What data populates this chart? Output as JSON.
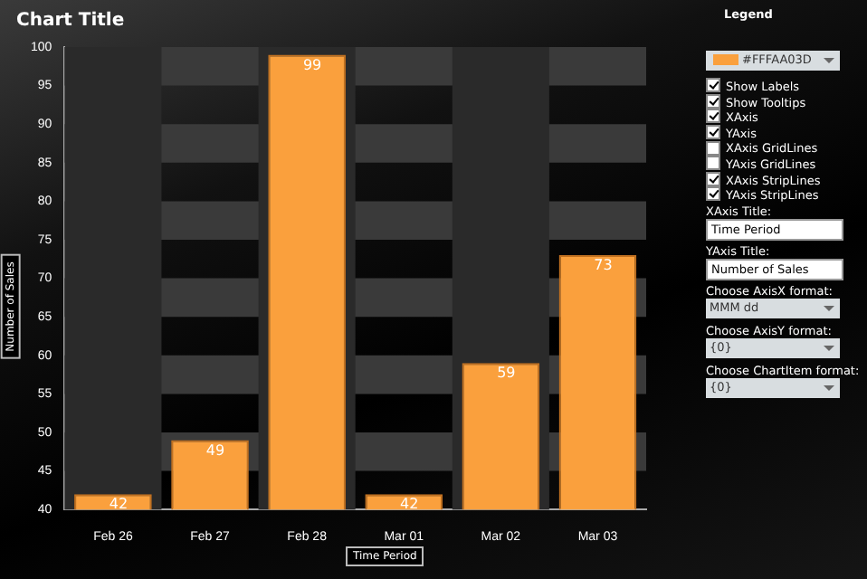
{
  "chart_data": {
    "type": "bar",
    "title": "Chart Title",
    "xlabel": "Time Period",
    "ylabel": "Number of Sales",
    "categories": [
      "Feb 26",
      "Feb 27",
      "Feb 28",
      "Mar 01",
      "Mar 02",
      "Mar 03"
    ],
    "values": [
      42,
      49,
      99,
      42,
      59,
      73
    ],
    "color": "#faa03d",
    "data_labels": true,
    "grid": false,
    "legend": false,
    "ylim": [
      40,
      100
    ],
    "yticks": [
      40,
      45,
      50,
      55,
      60,
      65,
      70,
      75,
      80,
      85,
      90,
      95,
      100
    ],
    "bands": [
      {
        "axis": "y",
        "from": 45,
        "to": 50,
        "color": "#3a3a3a"
      },
      {
        "axis": "y",
        "from": 55,
        "to": 60,
        "color": "#3a3a3a"
      },
      {
        "axis": "y",
        "from": 65,
        "to": 70,
        "color": "#3a3a3a"
      },
      {
        "axis": "y",
        "from": 75,
        "to": 80,
        "color": "#3a3a3a"
      },
      {
        "axis": "y",
        "from": 85,
        "to": 90,
        "color": "#3a3a3a"
      },
      {
        "axis": "y",
        "from": 95,
        "to": 100,
        "color": "#3a3a3a"
      },
      {
        "axis": "x",
        "from": "Feb 26",
        "to": "Feb 26",
        "color": "#2a2a2a"
      },
      {
        "axis": "x",
        "from": "Feb 28",
        "to": "Feb 28",
        "color": "#2a2a2a"
      },
      {
        "axis": "x",
        "from": "Mar 02",
        "to": "Mar 02",
        "color": "#2a2a2a"
      }
    ],
    "annotations": [
      "Legend",
      "#FFFAA03D",
      "Show Labels",
      "Show Tooltips",
      "XAxis",
      "YAxis",
      "XAxis GridLines",
      "YAxis GridLines",
      "XAxis StripLines",
      "YAxis StripLines",
      "XAxis Title:",
      "Time Period",
      "YAxis Title:",
      "Number of Sales",
      "Choose AxisX format:",
      "MMM dd",
      "Choose AxisY format:",
      "{0}",
      "Choose ChartItem format:",
      "{0}"
    ]
  }
}
